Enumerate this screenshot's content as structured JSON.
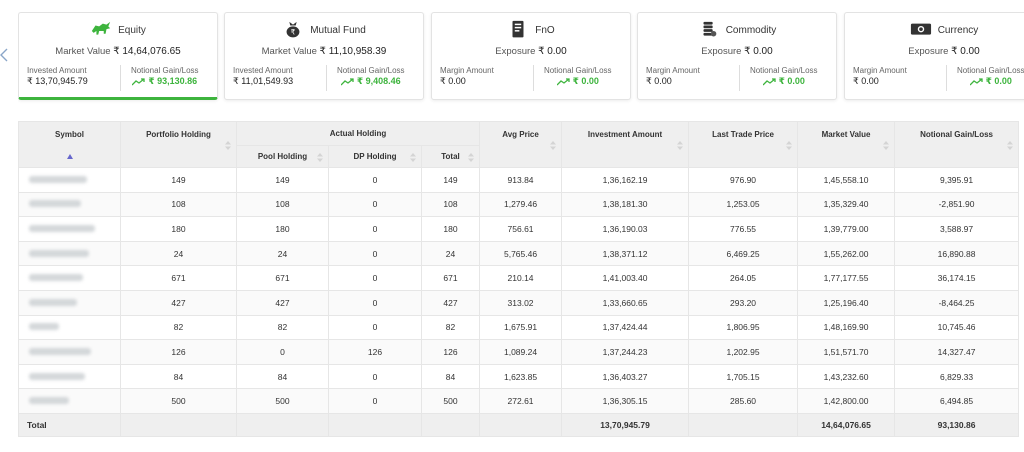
{
  "cards": [
    {
      "icon": "bull-icon",
      "title": "Equity",
      "sub_label": "Market Value",
      "sub_value": "₹ 14,64,076.65",
      "left_label": "Invested Amount",
      "left_value": "₹ 13,70,945.79",
      "right_label": "Notional Gain/Loss",
      "right_value": "₹ 93,130.86",
      "active": true
    },
    {
      "icon": "money-bag-icon",
      "title": "Mutual Fund",
      "sub_label": "Market Value",
      "sub_value": "₹ 11,10,958.39",
      "left_label": "Invested Amount",
      "left_value": "₹ 11,01,549.93",
      "right_label": "Notional Gain/Loss",
      "right_value": "₹ 9,408.46",
      "active": false
    },
    {
      "icon": "document-icon",
      "title": "FnO",
      "sub_label": "Exposure",
      "sub_value": "₹ 0.00",
      "left_label": "Margin Amount",
      "left_value": "₹ 0.00",
      "right_label": "Notional Gain/Loss",
      "right_value": "₹ 0.00",
      "active": false
    },
    {
      "icon": "coin-stack-icon",
      "title": "Commodity",
      "sub_label": "Exposure",
      "sub_value": "₹ 0.00",
      "left_label": "Margin Amount",
      "left_value": "₹ 0.00",
      "right_label": "Notional Gain/Loss",
      "right_value": "₹ 0.00",
      "active": false
    },
    {
      "icon": "banknote-icon",
      "title": "Currency",
      "sub_label": "Exposure",
      "sub_value": "₹ 0.00",
      "left_label": "Margin Amount",
      "left_value": "₹ 0.00",
      "right_label": "Notional Gain/Loss",
      "right_value": "₹ 0.00",
      "active": false
    }
  ],
  "table": {
    "headers": {
      "symbol": "Symbol",
      "portfolio_holding": "Portfolio Holding",
      "actual_holding": "Actual Holding",
      "pool_holding": "Pool Holding",
      "dp_holding": "DP Holding",
      "total": "Total",
      "avg_price": "Avg Price",
      "investment_amount": "Investment Amount",
      "last_trade_price": "Last Trade Price",
      "market_value": "Market Value",
      "notional_gain_loss": "Notional Gain/Loss"
    },
    "rows": [
      {
        "portfolio": "149",
        "pool": "149",
        "dp": "0",
        "total": "149",
        "avg": "913.84",
        "inv": "1,36,162.19",
        "ltp": "976.90",
        "mv": "1,45,558.10",
        "gl": "9,395.91"
      },
      {
        "portfolio": "108",
        "pool": "108",
        "dp": "0",
        "total": "108",
        "avg": "1,279.46",
        "inv": "1,38,181.30",
        "ltp": "1,253.05",
        "mv": "1,35,329.40",
        "gl": "-2,851.90"
      },
      {
        "portfolio": "180",
        "pool": "180",
        "dp": "0",
        "total": "180",
        "avg": "756.61",
        "inv": "1,36,190.03",
        "ltp": "776.55",
        "mv": "1,39,779.00",
        "gl": "3,588.97"
      },
      {
        "portfolio": "24",
        "pool": "24",
        "dp": "0",
        "total": "24",
        "avg": "5,765.46",
        "inv": "1,38,371.12",
        "ltp": "6,469.25",
        "mv": "1,55,262.00",
        "gl": "16,890.88"
      },
      {
        "portfolio": "671",
        "pool": "671",
        "dp": "0",
        "total": "671",
        "avg": "210.14",
        "inv": "1,41,003.40",
        "ltp": "264.05",
        "mv": "1,77,177.55",
        "gl": "36,174.15"
      },
      {
        "portfolio": "427",
        "pool": "427",
        "dp": "0",
        "total": "427",
        "avg": "313.02",
        "inv": "1,33,660.65",
        "ltp": "293.20",
        "mv": "1,25,196.40",
        "gl": "-8,464.25"
      },
      {
        "portfolio": "82",
        "pool": "82",
        "dp": "0",
        "total": "82",
        "avg": "1,675.91",
        "inv": "1,37,424.44",
        "ltp": "1,806.95",
        "mv": "1,48,169.90",
        "gl": "10,745.46"
      },
      {
        "portfolio": "126",
        "pool": "0",
        "dp": "126",
        "total": "126",
        "avg": "1,089.24",
        "inv": "1,37,244.23",
        "ltp": "1,202.95",
        "mv": "1,51,571.70",
        "gl": "14,327.47"
      },
      {
        "portfolio": "84",
        "pool": "84",
        "dp": "0",
        "total": "84",
        "avg": "1,623.85",
        "inv": "1,36,403.27",
        "ltp": "1,705.15",
        "mv": "1,43,232.60",
        "gl": "6,829.33"
      },
      {
        "portfolio": "500",
        "pool": "500",
        "dp": "0",
        "total": "500",
        "avg": "272.61",
        "inv": "1,36,305.15",
        "ltp": "285.60",
        "mv": "1,42,800.00",
        "gl": "6,494.85"
      }
    ],
    "footer": {
      "label": "Total",
      "inv": "13,70,945.79",
      "mv": "14,64,076.65",
      "gl": "93,130.86"
    }
  },
  "colors": {
    "accent_green": "#3db43d",
    "header_bg": "#efefef",
    "sort_active": "#6666cc"
  }
}
